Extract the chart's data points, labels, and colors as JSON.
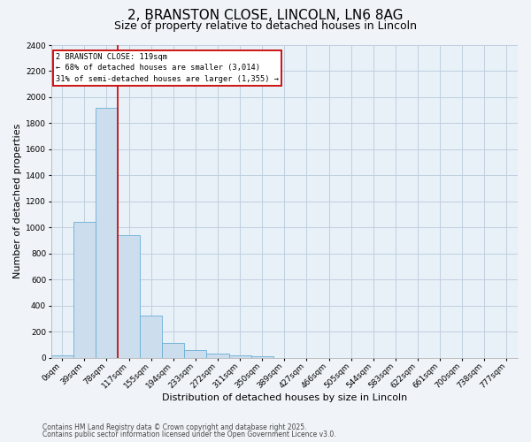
{
  "title": "2, BRANSTON CLOSE, LINCOLN, LN6 8AG",
  "subtitle": "Size of property relative to detached houses in Lincoln",
  "xlabel": "Distribution of detached houses by size in Lincoln",
  "ylabel": "Number of detached properties",
  "bar_labels": [
    "0sqm",
    "39sqm",
    "78sqm",
    "117sqm",
    "155sqm",
    "194sqm",
    "233sqm",
    "272sqm",
    "311sqm",
    "350sqm",
    "389sqm",
    "427sqm",
    "466sqm",
    "505sqm",
    "544sqm",
    "583sqm",
    "622sqm",
    "661sqm",
    "700sqm",
    "738sqm",
    "777sqm"
  ],
  "bar_values": [
    20,
    1040,
    1920,
    940,
    320,
    110,
    55,
    30,
    20,
    10,
    0,
    0,
    0,
    0,
    0,
    0,
    0,
    0,
    0,
    0,
    0
  ],
  "bar_color": "#ccdded",
  "bar_edgecolor": "#6aafd6",
  "redline_x": 3.0,
  "redline_label": "2 BRANSTON CLOSE: 119sqm",
  "annotation_line1": "← 68% of detached houses are smaller (3,014)",
  "annotation_line2": "31% of semi-detached houses are larger (1,355) →",
  "annotation_box_color": "#ffffff",
  "annotation_box_edgecolor": "#cc0000",
  "redline_color": "#cc0000",
  "ylim": [
    0,
    2400
  ],
  "yticks": [
    0,
    200,
    400,
    600,
    800,
    1000,
    1200,
    1400,
    1600,
    1800,
    2000,
    2200,
    2400
  ],
  "footnote1": "Contains HM Land Registry data © Crown copyright and database right 2025.",
  "footnote2": "Contains public sector information licensed under the Open Government Licence v3.0.",
  "bg_color": "#f0f4f8",
  "plot_bg_color": "#e8f0f8",
  "grid_color": "#c0d0e0",
  "title_fontsize": 11,
  "subtitle_fontsize": 9,
  "axis_fontsize": 8,
  "tick_fontsize": 6.5,
  "footnote_fontsize": 5.5
}
